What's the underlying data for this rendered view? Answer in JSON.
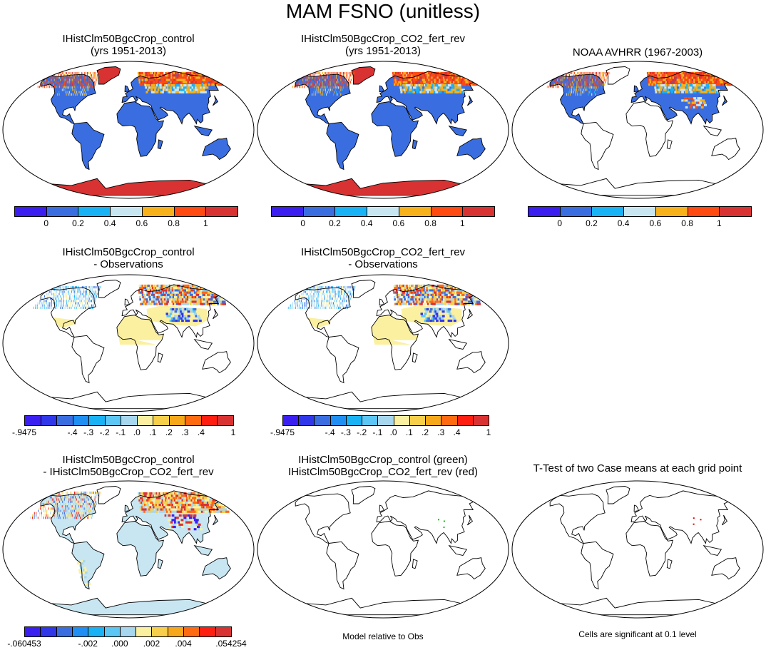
{
  "main_title": "MAM FSNO (unitless)",
  "panels": {
    "control": {
      "title1": "IHistClm50BgcCrop_control",
      "title2": "(yrs 1951-2013)"
    },
    "co2": {
      "title1": "IHistClm50BgcCrop_CO2_fert_rev",
      "title2": "(yrs 1951-2013)"
    },
    "obs": {
      "title1": "NOAA AVHRR (1967-2003)"
    },
    "control_minus_obs": {
      "title1": "IHistClm50BgcCrop_control",
      "title2": "- Observations"
    },
    "co2_minus_obs": {
      "title1": "IHistClm50BgcCrop_CO2_fert_rev",
      "title2": "- Observations"
    },
    "control_minus_co2": {
      "title1": "IHistClm50BgcCrop_control",
      "title2": "- IHistClm50BgcCrop_CO2_fert_rev"
    },
    "overlay": {
      "title1": "IHistClm50BgcCrop_control (green)",
      "title2": "IHistClm50BgcCrop_CO2_fert_rev (red)"
    },
    "ttest": {
      "title1": "T-Test of two Case means at each grid point"
    }
  },
  "notes": {
    "model_vs_obs": "Model relative to Obs",
    "significance": "Cells are significant at 0.1 level"
  },
  "colorbars": {
    "abs": {
      "colors": [
        "#3b1ff0",
        "#3a6ee0",
        "#19b2f5",
        "#c8e6f2",
        "#f7b11a",
        "#ff4a12",
        "#d93232"
      ],
      "labels": [
        "0",
        "0.2",
        "0.4",
        "0.6",
        "0.8",
        "1"
      ]
    },
    "diff": {
      "colors": [
        "#3b1ff0",
        "#2f37e8",
        "#3a6ee0",
        "#1f8ff3",
        "#19b2f5",
        "#5cc6f5",
        "#a6d7ee",
        "#fbf0a0",
        "#f8cf4a",
        "#f7a81a",
        "#ff6a10",
        "#ff1e10",
        "#d93232"
      ],
      "labels": [
        "-.9475",
        "-.4",
        "-.3",
        "-.2",
        "-.1",
        ".0",
        ".1",
        ".2",
        ".3",
        ".4",
        "1"
      ]
    },
    "ctrl_co2": {
      "colors": [
        "#3b1ff0",
        "#2f37e8",
        "#3a6ee0",
        "#1f8ff3",
        "#19b2f5",
        "#5cc6f5",
        "#a6d7ee",
        "#fbf0a0",
        "#f8cf4a",
        "#f7a81a",
        "#ff6a10",
        "#ff1e10",
        "#d93232"
      ],
      "labels": [
        "-.060453",
        "-.002",
        ".000",
        ".002",
        ".004",
        ".054254"
      ]
    }
  },
  "chart_data": [
    {
      "type": "heatmap",
      "title": "IHistClm50BgcCrop_control (yrs 1951-2013)",
      "colorbar": "abs",
      "levels": [
        0,
        0.2,
        0.4,
        0.6,
        0.8,
        1
      ]
    },
    {
      "type": "heatmap",
      "title": "IHistClm50BgcCrop_CO2_fert_rev (yrs 1951-2013)",
      "colorbar": "abs",
      "levels": [
        0,
        0.2,
        0.4,
        0.6,
        0.8,
        1
      ]
    },
    {
      "type": "heatmap",
      "title": "NOAA AVHRR (1967-2003)",
      "colorbar": "abs",
      "levels": [
        0,
        0.2,
        0.4,
        0.6,
        0.8,
        1
      ]
    },
    {
      "type": "heatmap",
      "title": "IHistClm50BgcCrop_control - Observations",
      "colorbar": "diff",
      "levels": [
        -0.9475,
        -0.4,
        -0.3,
        -0.2,
        -0.1,
        0.0,
        0.1,
        0.2,
        0.3,
        0.4,
        1
      ]
    },
    {
      "type": "heatmap",
      "title": "IHistClm50BgcCrop_CO2_fert_rev - Observations",
      "colorbar": "diff",
      "levels": [
        -0.9475,
        -0.4,
        -0.3,
        -0.2,
        -0.1,
        0.0,
        0.1,
        0.2,
        0.3,
        0.4,
        1
      ]
    },
    {
      "type": "heatmap",
      "title": "IHistClm50BgcCrop_control - IHistClm50BgcCrop_CO2_fert_rev",
      "colorbar": "ctrl_co2",
      "levels": [
        -0.060453,
        -0.002,
        0.0,
        0.002,
        0.004,
        0.054254
      ]
    },
    {
      "type": "scatter",
      "title": "IHistClm50BgcCrop_control (green) IHistClm50BgcCrop_CO2_fert_rev (red)"
    },
    {
      "type": "scatter",
      "title": "T-Test of two Case means at each grid point"
    }
  ]
}
